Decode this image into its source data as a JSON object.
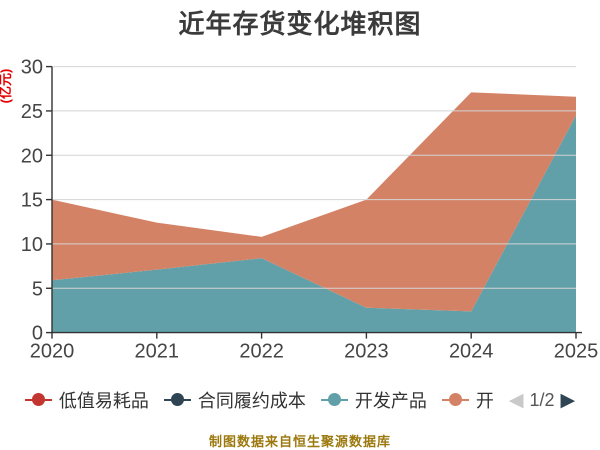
{
  "title": "近年存货变化堆积图",
  "footer": "制图数据来自恒生聚源数据库",
  "axis": {
    "y_name": "(亿元)",
    "y_ticks": [
      "0",
      "5",
      "10",
      "15",
      "20",
      "25",
      "30"
    ],
    "x_labels": [
      "2020",
      "2021",
      "2022",
      "2023",
      "2024",
      "2025"
    ]
  },
  "legend": {
    "items": [
      {
        "label": "低值易耗品",
        "color": "#c23531"
      },
      {
        "label": "合同履约成本",
        "color": "#2f4554"
      },
      {
        "label": "开发产品",
        "color": "#61a0a8"
      },
      {
        "label": "开",
        "color": "#d48265"
      }
    ],
    "pager": {
      "prev": "◀",
      "page": "1/2",
      "next": "▶",
      "prev_color": "#c9c9c9",
      "next_color": "#2f4554"
    }
  },
  "colors": {
    "grid": "#d4d4d4",
    "axis": "#333333",
    "tick_label": "#454545",
    "y_name": "#e60000",
    "footer": "#9c790e",
    "title": "#3b3b3b"
  },
  "chart_data": {
    "type": "area",
    "stacked": true,
    "title": "近年存货变化堆积图",
    "ylabel": "(亿元)",
    "ylim": [
      0,
      30
    ],
    "grid": true,
    "legend_position": "bottom",
    "categories": [
      "2020",
      "2021",
      "2022",
      "2023",
      "2024",
      "2025"
    ],
    "series": [
      {
        "name": "低值易耗品",
        "color": "#c23531",
        "values": [
          0,
          0,
          0,
          0,
          0,
          0
        ]
      },
      {
        "name": "合同履约成本",
        "color": "#2f4554",
        "values": [
          0,
          0,
          0,
          0,
          0,
          0
        ]
      },
      {
        "name": "开发产品",
        "color": "#61a0a8",
        "values": [
          5.9,
          7.1,
          8.4,
          2.8,
          2.4,
          24.5
        ]
      },
      {
        "name": "开",
        "color": "#d48265",
        "values": [
          9.1,
          5.3,
          2.4,
          12.2,
          24.7,
          2.1
        ]
      }
    ]
  }
}
